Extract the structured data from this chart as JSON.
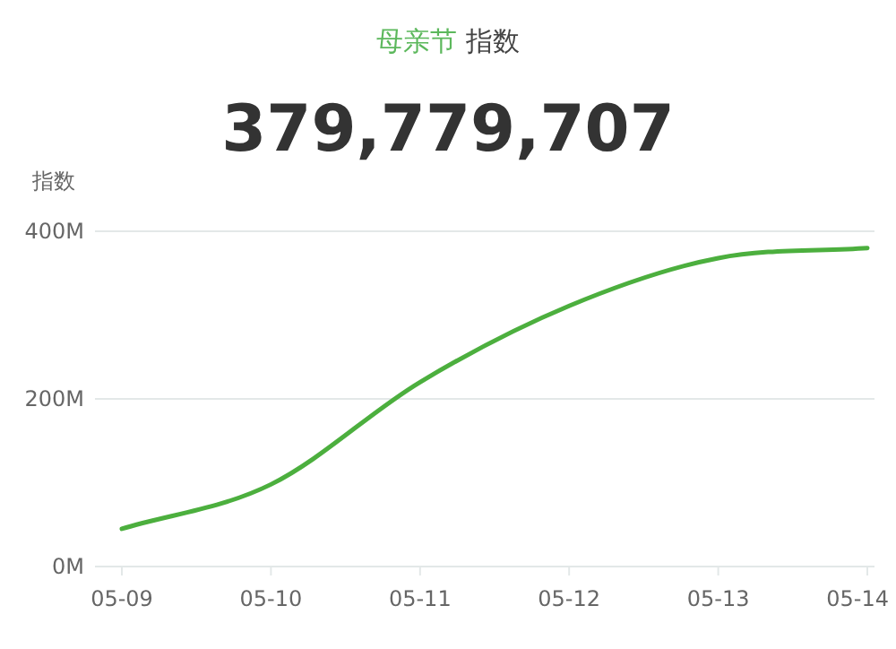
{
  "chart_data": {
    "type": "line",
    "title": "母亲节",
    "subtitle": "指数",
    "annotations": [
      "379,779,707"
    ],
    "ylabel": "指数",
    "categories": [
      "05-09",
      "05-10",
      "05-11",
      "05-12",
      "05-13",
      "05-14"
    ],
    "series": [
      {
        "color": "#4caf3e",
        "values": [
          45,
          98,
          220,
          311,
          368,
          380
        ]
      }
    ],
    "ylim": [
      0,
      400
    ],
    "yticks": [
      {
        "value": 0,
        "label": "0M"
      },
      {
        "value": 200,
        "label": "200M"
      },
      {
        "value": 400,
        "label": "400M"
      }
    ],
    "grid": "y",
    "marker": "none",
    "line_style": "solid"
  }
}
